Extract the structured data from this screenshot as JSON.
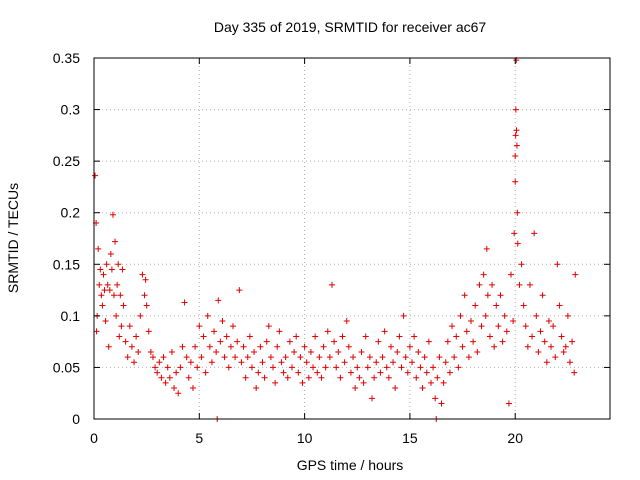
{
  "chart_data": {
    "type": "scatter",
    "title": "Day 335 of 2019, SRMTID for receiver ac67",
    "xlabel": "GPS time / hours",
    "ylabel": "SRMTID / TECUs",
    "xlim": [
      0,
      24.5
    ],
    "ylim": [
      0,
      0.35
    ],
    "xticks": [
      0,
      5,
      10,
      15,
      20
    ],
    "xtick_labels": [
      "0",
      "5",
      "10",
      "15",
      "20"
    ],
    "yticks": [
      0,
      0.05,
      0.1,
      0.15,
      0.2,
      0.25,
      0.3,
      0.35
    ],
    "ytick_labels": [
      "0",
      "0.05",
      "0.1",
      "0.15",
      "0.2",
      "0.25",
      "0.3",
      "0.35"
    ],
    "grid": true,
    "marker": "+",
    "color": "#e00000",
    "series": [
      {
        "name": "ac67",
        "points": [
          [
            0.05,
            0.236
          ],
          [
            0.1,
            0.19
          ],
          [
            0.12,
            0.085
          ],
          [
            0.15,
            0.1
          ],
          [
            0.2,
            0.165
          ],
          [
            0.25,
            0.13
          ],
          [
            0.3,
            0.145
          ],
          [
            0.35,
            0.12
          ],
          [
            0.4,
            0.11
          ],
          [
            0.45,
            0.14
          ],
          [
            0.5,
            0.125
          ],
          [
            0.55,
            0.095
          ],
          [
            0.6,
            0.15
          ],
          [
            0.65,
            0.13
          ],
          [
            0.7,
            0.07
          ],
          [
            0.75,
            0.125
          ],
          [
            0.8,
            0.16
          ],
          [
            0.85,
            0.145
          ],
          [
            0.9,
            0.198
          ],
          [
            0.95,
            0.12
          ],
          [
            1.0,
            0.172
          ],
          [
            1.05,
            0.1
          ],
          [
            1.1,
            0.13
          ],
          [
            1.15,
            0.15
          ],
          [
            1.2,
            0.08
          ],
          [
            1.25,
            0.12
          ],
          [
            1.3,
            0.09
          ],
          [
            1.35,
            0.145
          ],
          [
            1.4,
            0.11
          ],
          [
            1.5,
            0.075
          ],
          [
            1.6,
            0.06
          ],
          [
            1.7,
            0.09
          ],
          [
            1.8,
            0.07
          ],
          [
            1.9,
            0.055
          ],
          [
            2.0,
            0.08
          ],
          [
            2.1,
            0.065
          ],
          [
            2.2,
            0.1
          ],
          [
            2.3,
            0.14
          ],
          [
            2.4,
            0.12
          ],
          [
            2.45,
            0.135
          ],
          [
            2.5,
            0.11
          ],
          [
            2.6,
            0.085
          ],
          [
            2.7,
            0.065
          ],
          [
            2.8,
            0.06
          ],
          [
            2.9,
            0.05
          ],
          [
            3.0,
            0.045
          ],
          [
            3.1,
            0.055
          ],
          [
            3.2,
            0.04
          ],
          [
            3.3,
            0.06
          ],
          [
            3.4,
            0.035
          ],
          [
            3.5,
            0.05
          ],
          [
            3.6,
            0.04
          ],
          [
            3.7,
            0.065
          ],
          [
            3.8,
            0.03
          ],
          [
            3.9,
            0.045
          ],
          [
            4.0,
            0.025
          ],
          [
            4.1,
            0.05
          ],
          [
            4.2,
            0.07
          ],
          [
            4.3,
            0.113
          ],
          [
            4.4,
            0.06
          ],
          [
            4.5,
            0.04
          ],
          [
            4.6,
            0.055
          ],
          [
            4.7,
            0.03
          ],
          [
            4.8,
            0.07
          ],
          [
            4.9,
            0.05
          ],
          [
            5.0,
            0.09
          ],
          [
            5.1,
            0.06
          ],
          [
            5.2,
            0.08
          ],
          [
            5.3,
            0.045
          ],
          [
            5.4,
            0.1
          ],
          [
            5.5,
            0.07
          ],
          [
            5.6,
            0.055
          ],
          [
            5.7,
            0.085
          ],
          [
            5.8,
            0.065
          ],
          [
            5.85,
            0.0
          ],
          [
            5.9,
            0.115
          ],
          [
            6.0,
            0.075
          ],
          [
            6.1,
            0.095
          ],
          [
            6.2,
            0.06
          ],
          [
            6.3,
            0.08
          ],
          [
            6.4,
            0.05
          ],
          [
            6.5,
            0.07
          ],
          [
            6.6,
            0.09
          ],
          [
            6.7,
            0.06
          ],
          [
            6.8,
            0.075
          ],
          [
            6.9,
            0.125
          ],
          [
            7.0,
            0.055
          ],
          [
            7.1,
            0.07
          ],
          [
            7.2,
            0.04
          ],
          [
            7.3,
            0.06
          ],
          [
            7.4,
            0.08
          ],
          [
            7.5,
            0.05
          ],
          [
            7.6,
            0.065
          ],
          [
            7.7,
            0.03
          ],
          [
            7.8,
            0.045
          ],
          [
            7.9,
            0.07
          ],
          [
            8.0,
            0.055
          ],
          [
            8.1,
            0.04
          ],
          [
            8.2,
            0.075
          ],
          [
            8.3,
            0.09
          ],
          [
            8.4,
            0.06
          ],
          [
            8.5,
            0.05
          ],
          [
            8.6,
            0.035
          ],
          [
            8.7,
            0.07
          ],
          [
            8.8,
            0.085
          ],
          [
            8.9,
            0.055
          ],
          [
            9.0,
            0.045
          ],
          [
            9.1,
            0.06
          ],
          [
            9.2,
            0.04
          ],
          [
            9.3,
            0.075
          ],
          [
            9.4,
            0.05
          ],
          [
            9.5,
            0.065
          ],
          [
            9.6,
            0.08
          ],
          [
            9.7,
            0.045
          ],
          [
            9.8,
            0.06
          ],
          [
            9.9,
            0.035
          ],
          [
            10.0,
            0.07
          ],
          [
            10.1,
            0.055
          ],
          [
            10.2,
            0.04
          ],
          [
            10.3,
            0.065
          ],
          [
            10.4,
            0.05
          ],
          [
            10.5,
            0.08
          ],
          [
            10.6,
            0.045
          ],
          [
            10.7,
            0.06
          ],
          [
            10.8,
            0.04
          ],
          [
            10.9,
            0.07
          ],
          [
            11.0,
            0.05
          ],
          [
            11.1,
            0.085
          ],
          [
            11.2,
            0.06
          ],
          [
            11.3,
            0.13
          ],
          [
            11.4,
            0.075
          ],
          [
            11.5,
            0.05
          ],
          [
            11.6,
            0.065
          ],
          [
            11.7,
            0.04
          ],
          [
            11.8,
            0.08
          ],
          [
            11.9,
            0.055
          ],
          [
            12.0,
            0.095
          ],
          [
            12.1,
            0.07
          ],
          [
            12.2,
            0.045
          ],
          [
            12.3,
            0.06
          ],
          [
            12.4,
            0.03
          ],
          [
            12.5,
            0.05
          ],
          [
            12.6,
            0.04
          ],
          [
            12.7,
            0.065
          ],
          [
            12.8,
            0.035
          ],
          [
            12.9,
            0.08
          ],
          [
            13.0,
            0.05
          ],
          [
            13.1,
            0.06
          ],
          [
            13.2,
            0.02
          ],
          [
            13.3,
            0.04
          ],
          [
            13.4,
            0.055
          ],
          [
            13.5,
            0.075
          ],
          [
            13.6,
            0.045
          ],
          [
            13.7,
            0.06
          ],
          [
            13.8,
            0.085
          ],
          [
            13.9,
            0.05
          ],
          [
            14.0,
            0.04
          ],
          [
            14.1,
            0.07
          ],
          [
            14.2,
            0.055
          ],
          [
            14.3,
            0.03
          ],
          [
            14.4,
            0.065
          ],
          [
            14.5,
            0.08
          ],
          [
            14.6,
            0.05
          ],
          [
            14.7,
            0.1
          ],
          [
            14.8,
            0.06
          ],
          [
            14.9,
            0.045
          ],
          [
            15.0,
            0.07
          ],
          [
            15.1,
            0.055
          ],
          [
            15.2,
            0.08
          ],
          [
            15.3,
            0.04
          ],
          [
            15.4,
            0.065
          ],
          [
            15.5,
            0.05
          ],
          [
            15.6,
            0.03
          ],
          [
            15.7,
            0.06
          ],
          [
            15.8,
            0.045
          ],
          [
            15.9,
            0.075
          ],
          [
            16.0,
            0.035
          ],
          [
            16.1,
            0.05
          ],
          [
            16.2,
            0.02
          ],
          [
            16.25,
            0.0
          ],
          [
            16.3,
            0.04
          ],
          [
            16.4,
            0.06
          ],
          [
            16.5,
            0.015
          ],
          [
            16.6,
            0.035
          ],
          [
            16.7,
            0.055
          ],
          [
            16.8,
            0.075
          ],
          [
            16.9,
            0.045
          ],
          [
            17.0,
            0.09
          ],
          [
            17.1,
            0.06
          ],
          [
            17.2,
            0.08
          ],
          [
            17.3,
            0.05
          ],
          [
            17.4,
            0.1
          ],
          [
            17.5,
            0.07
          ],
          [
            17.6,
            0.12
          ],
          [
            17.7,
            0.085
          ],
          [
            17.8,
            0.06
          ],
          [
            17.9,
            0.095
          ],
          [
            18.0,
            0.075
          ],
          [
            18.1,
            0.11
          ],
          [
            18.2,
            0.065
          ],
          [
            18.3,
            0.13
          ],
          [
            18.4,
            0.09
          ],
          [
            18.5,
            0.14
          ],
          [
            18.6,
            0.1
          ],
          [
            18.65,
            0.165
          ],
          [
            18.7,
            0.12
          ],
          [
            18.8,
            0.08
          ],
          [
            18.9,
            0.13
          ],
          [
            19.0,
            0.07
          ],
          [
            19.1,
            0.11
          ],
          [
            19.2,
            0.09
          ],
          [
            19.3,
            0.12
          ],
          [
            19.4,
            0.075
          ],
          [
            19.5,
            0.1
          ],
          [
            19.6,
            0.085
          ],
          [
            19.7,
            0.015
          ],
          [
            19.8,
            0.14
          ],
          [
            19.9,
            0.095
          ],
          [
            19.95,
            0.18
          ],
          [
            20.0,
            0.23
          ],
          [
            20.0,
            0.255
          ],
          [
            20.02,
            0.275
          ],
          [
            20.03,
            0.3
          ],
          [
            20.05,
            0.348
          ],
          [
            20.06,
            0.28
          ],
          [
            20.08,
            0.265
          ],
          [
            20.1,
            0.2
          ],
          [
            20.12,
            0.17
          ],
          [
            20.2,
            0.13
          ],
          [
            20.3,
            0.15
          ],
          [
            20.4,
            0.11
          ],
          [
            20.5,
            0.09
          ],
          [
            20.6,
            0.07
          ],
          [
            20.7,
            0.13
          ],
          [
            20.8,
            0.08
          ],
          [
            20.9,
            0.18
          ],
          [
            21.0,
            0.1
          ],
          [
            21.1,
            0.065
          ],
          [
            21.2,
            0.085
          ],
          [
            21.3,
            0.12
          ],
          [
            21.4,
            0.075
          ],
          [
            21.5,
            0.055
          ],
          [
            21.6,
            0.095
          ],
          [
            21.7,
            0.07
          ],
          [
            21.8,
            0.09
          ],
          [
            21.9,
            0.06
          ],
          [
            22.0,
            0.15
          ],
          [
            22.1,
            0.11
          ],
          [
            22.2,
            0.08
          ],
          [
            22.3,
            0.065
          ],
          [
            22.4,
            0.07
          ],
          [
            22.5,
            0.1
          ],
          [
            22.6,
            0.055
          ],
          [
            22.7,
            0.075
          ],
          [
            22.8,
            0.045
          ],
          [
            22.85,
            0.14
          ]
        ]
      }
    ]
  }
}
